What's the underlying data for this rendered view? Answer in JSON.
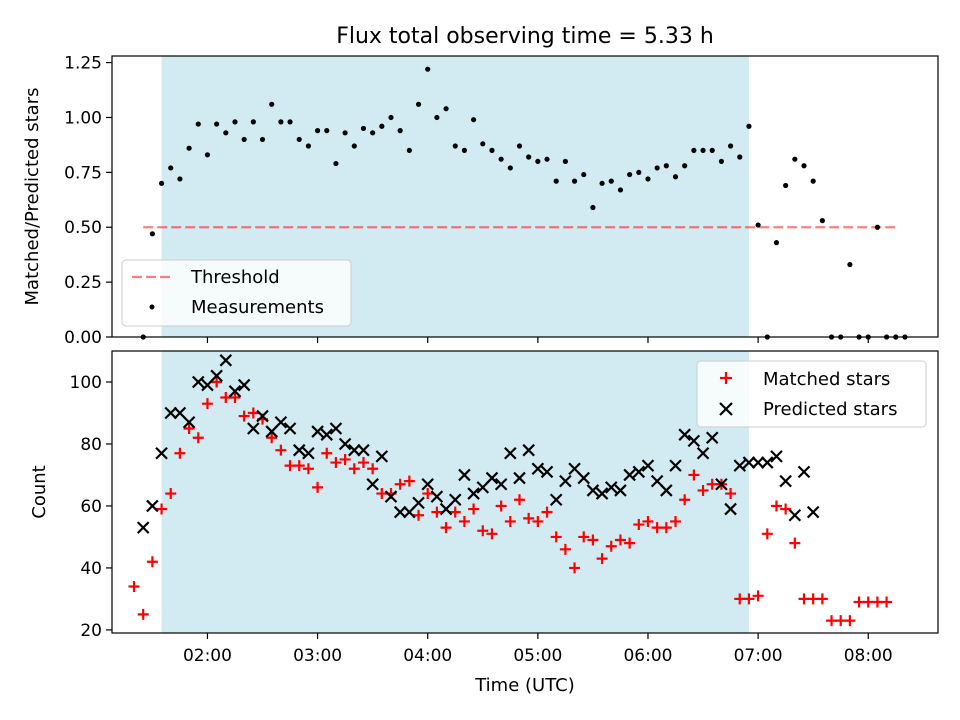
{
  "title": "Flux total observing time = 5.33 h",
  "colors": {
    "observing_window": "#add8e6",
    "threshold": "#ff0000",
    "measurements": "#000000",
    "matched": "#ff0000",
    "predicted": "#000000"
  },
  "chart_data": [
    {
      "type": "scatter",
      "title": "Flux total observing time = 5.33 h",
      "ylabel": "Matched/Predicted stars",
      "xlabel": "",
      "xlim": [
        "01:08",
        "08:38"
      ],
      "ylim": [
        0,
        1.28
      ],
      "yticks": [
        "0.00",
        "0.25",
        "0.50",
        "0.75",
        "1.00",
        "1.25"
      ],
      "observing_window": [
        "01:35",
        "06:55"
      ],
      "legend": {
        "position": "lower-left",
        "entries": [
          "Threshold",
          "Measurements"
        ]
      },
      "threshold": {
        "name": "Threshold",
        "value": 0.5,
        "x_range": [
          "01:25",
          "08:15"
        ]
      },
      "series": [
        {
          "name": "Measurements",
          "marker": "dot",
          "points": [
            [
              "01:25",
              0.0
            ],
            [
              "01:30",
              0.47
            ],
            [
              "01:35",
              0.7
            ],
            [
              "01:40",
              0.77
            ],
            [
              "01:45",
              0.72
            ],
            [
              "01:50",
              0.86
            ],
            [
              "01:55",
              0.97
            ],
            [
              "02:00",
              0.83
            ],
            [
              "02:05",
              0.97
            ],
            [
              "02:10",
              0.93
            ],
            [
              "02:15",
              0.98
            ],
            [
              "02:20",
              0.9
            ],
            [
              "02:25",
              0.98
            ],
            [
              "02:30",
              0.9
            ],
            [
              "02:35",
              1.06
            ],
            [
              "02:40",
              0.98
            ],
            [
              "02:45",
              0.98
            ],
            [
              "02:50",
              0.9
            ],
            [
              "02:55",
              0.87
            ],
            [
              "03:00",
              0.94
            ],
            [
              "03:05",
              0.94
            ],
            [
              "03:10",
              0.79
            ],
            [
              "03:15",
              0.93
            ],
            [
              "03:20",
              0.87
            ],
            [
              "03:25",
              0.95
            ],
            [
              "03:30",
              0.93
            ],
            [
              "03:35",
              0.96
            ],
            [
              "03:40",
              1.0
            ],
            [
              "03:45",
              0.94
            ],
            [
              "03:50",
              0.85
            ],
            [
              "03:55",
              1.06
            ],
            [
              "04:00",
              1.22
            ],
            [
              "04:05",
              1.0
            ],
            [
              "04:10",
              1.04
            ],
            [
              "04:15",
              0.87
            ],
            [
              "04:20",
              0.85
            ],
            [
              "04:25",
              0.99
            ],
            [
              "04:30",
              0.88
            ],
            [
              "04:35",
              0.85
            ],
            [
              "04:40",
              0.81
            ],
            [
              "04:45",
              0.77
            ],
            [
              "04:50",
              0.87
            ],
            [
              "04:55",
              0.82
            ],
            [
              "05:00",
              0.8
            ],
            [
              "05:05",
              0.81
            ],
            [
              "05:10",
              0.71
            ],
            [
              "05:15",
              0.8
            ],
            [
              "05:20",
              0.71
            ],
            [
              "05:25",
              0.74
            ],
            [
              "05:30",
              0.59
            ],
            [
              "05:35",
              0.7
            ],
            [
              "05:40",
              0.71
            ],
            [
              "05:45",
              0.67
            ],
            [
              "05:50",
              0.74
            ],
            [
              "05:55",
              0.75
            ],
            [
              "06:00",
              0.72
            ],
            [
              "06:05",
              0.77
            ],
            [
              "06:10",
              0.78
            ],
            [
              "06:15",
              0.73
            ],
            [
              "06:20",
              0.78
            ],
            [
              "06:25",
              0.85
            ],
            [
              "06:30",
              0.85
            ],
            [
              "06:35",
              0.85
            ],
            [
              "06:40",
              0.8
            ],
            [
              "06:45",
              0.87
            ],
            [
              "06:50",
              0.82
            ],
            [
              "06:55",
              0.96
            ],
            [
              "07:00",
              0.51
            ],
            [
              "07:05",
              0.0
            ],
            [
              "07:10",
              0.43
            ],
            [
              "07:15",
              0.69
            ],
            [
              "07:20",
              0.81
            ],
            [
              "07:25",
              0.78
            ],
            [
              "07:30",
              0.71
            ],
            [
              "07:35",
              0.53
            ],
            [
              "07:40",
              0.0
            ],
            [
              "07:45",
              0.0
            ],
            [
              "07:50",
              0.33
            ],
            [
              "07:55",
              0.0
            ],
            [
              "08:00",
              0.0
            ],
            [
              "08:05",
              0.5
            ],
            [
              "08:10",
              0.0
            ],
            [
              "08:15",
              0.0
            ],
            [
              "08:20",
              0.0
            ]
          ]
        }
      ]
    },
    {
      "type": "scatter",
      "title": "",
      "ylabel": "Count",
      "xlabel": "Time (UTC)",
      "xlim": [
        "01:08",
        "08:38"
      ],
      "ylim": [
        19,
        110
      ],
      "yticks": [
        "20",
        "40",
        "60",
        "80",
        "100"
      ],
      "xticks": [
        "02:00",
        "03:00",
        "04:00",
        "05:00",
        "06:00",
        "07:00",
        "08:00"
      ],
      "observing_window": [
        "01:35",
        "06:55"
      ],
      "legend": {
        "position": "top-right",
        "entries": [
          "Matched stars",
          "Predicted stars"
        ]
      },
      "series": [
        {
          "name": "Matched stars",
          "marker": "plus",
          "points": [
            [
              "01:20",
              34
            ],
            [
              "01:25",
              25
            ],
            [
              "01:30",
              42
            ],
            [
              "01:35",
              59
            ],
            [
              "01:40",
              64
            ],
            [
              "01:45",
              77
            ],
            [
              "01:50",
              85
            ],
            [
              "01:55",
              82
            ],
            [
              "02:00",
              93
            ],
            [
              "02:05",
              100
            ],
            [
              "02:10",
              95
            ],
            [
              "02:15",
              95
            ],
            [
              "02:20",
              89
            ],
            [
              "02:25",
              90
            ],
            [
              "02:30",
              88
            ],
            [
              "02:35",
              82
            ],
            [
              "02:40",
              78
            ],
            [
              "02:45",
              73
            ],
            [
              "02:50",
              73
            ],
            [
              "02:55",
              72
            ],
            [
              "03:00",
              66
            ],
            [
              "03:05",
              77
            ],
            [
              "03:10",
              74
            ],
            [
              "03:15",
              75
            ],
            [
              "03:20",
              72
            ],
            [
              "03:25",
              74
            ],
            [
              "03:30",
              72
            ],
            [
              "03:35",
              64
            ],
            [
              "03:40",
              64
            ],
            [
              "03:45",
              67
            ],
            [
              "03:50",
              68
            ],
            [
              "03:55",
              57
            ],
            [
              "04:00",
              64
            ],
            [
              "04:05",
              58
            ],
            [
              "04:10",
              53
            ],
            [
              "04:15",
              58
            ],
            [
              "04:20",
              55
            ],
            [
              "04:25",
              59
            ],
            [
              "04:30",
              52
            ],
            [
              "04:35",
              51
            ],
            [
              "04:40",
              60
            ],
            [
              "04:45",
              55
            ],
            [
              "04:50",
              62
            ],
            [
              "04:55",
              56
            ],
            [
              "05:00",
              55
            ],
            [
              "05:05",
              58
            ],
            [
              "05:10",
              50
            ],
            [
              "05:15",
              46
            ],
            [
              "05:20",
              40
            ],
            [
              "05:25",
              50
            ],
            [
              "05:30",
              49
            ],
            [
              "05:35",
              43
            ],
            [
              "05:40",
              47
            ],
            [
              "05:45",
              49
            ],
            [
              "05:50",
              48
            ],
            [
              "05:55",
              54
            ],
            [
              "06:00",
              55
            ],
            [
              "06:05",
              53
            ],
            [
              "06:10",
              53
            ],
            [
              "06:15",
              55
            ],
            [
              "06:20",
              62
            ],
            [
              "06:25",
              70
            ],
            [
              "06:30",
              65
            ],
            [
              "06:35",
              67
            ],
            [
              "06:40",
              67
            ],
            [
              "06:45",
              64
            ],
            [
              "06:50",
              30
            ],
            [
              "06:55",
              30
            ],
            [
              "07:00",
              31
            ],
            [
              "07:05",
              51
            ],
            [
              "07:10",
              60
            ],
            [
              "07:15",
              59
            ],
            [
              "07:20",
              48
            ],
            [
              "07:25",
              30
            ],
            [
              "07:30",
              30
            ],
            [
              "07:35",
              30
            ],
            [
              "07:40",
              23
            ],
            [
              "07:45",
              23
            ],
            [
              "07:50",
              23
            ],
            [
              "07:55",
              29
            ],
            [
              "08:00",
              29
            ],
            [
              "08:05",
              29
            ],
            [
              "08:10",
              29
            ]
          ]
        },
        {
          "name": "Predicted stars",
          "marker": "x",
          "points": [
            [
              "01:25",
              53
            ],
            [
              "01:30",
              60
            ],
            [
              "01:35",
              77
            ],
            [
              "01:40",
              90
            ],
            [
              "01:45",
              90
            ],
            [
              "01:50",
              87
            ],
            [
              "01:55",
              100
            ],
            [
              "02:00",
              99
            ],
            [
              "02:05",
              102
            ],
            [
              "02:10",
              107
            ],
            [
              "02:15",
              97
            ],
            [
              "02:20",
              99
            ],
            [
              "02:25",
              85
            ],
            [
              "02:30",
              89
            ],
            [
              "02:35",
              84
            ],
            [
              "02:40",
              87
            ],
            [
              "02:45",
              85
            ],
            [
              "02:50",
              78
            ],
            [
              "02:55",
              77
            ],
            [
              "03:00",
              84
            ],
            [
              "03:05",
              83
            ],
            [
              "03:10",
              85
            ],
            [
              "03:15",
              80
            ],
            [
              "03:20",
              78
            ],
            [
              "03:25",
              78
            ],
            [
              "03:30",
              67
            ],
            [
              "03:35",
              76
            ],
            [
              "03:40",
              63
            ],
            [
              "03:45",
              58
            ],
            [
              "03:50",
              58
            ],
            [
              "03:55",
              61
            ],
            [
              "04:00",
              67
            ],
            [
              "04:05",
              63
            ],
            [
              "04:10",
              59
            ],
            [
              "04:15",
              62
            ],
            [
              "04:20",
              70
            ],
            [
              "04:25",
              64
            ],
            [
              "04:30",
              66
            ],
            [
              "04:35",
              69
            ],
            [
              "04:40",
              67
            ],
            [
              "04:45",
              77
            ],
            [
              "04:50",
              69
            ],
            [
              "04:55",
              78
            ],
            [
              "05:00",
              72
            ],
            [
              "05:05",
              71
            ],
            [
              "05:10",
              62
            ],
            [
              "05:15",
              68
            ],
            [
              "05:20",
              72
            ],
            [
              "05:25",
              69
            ],
            [
              "05:30",
              65
            ],
            [
              "05:35",
              64
            ],
            [
              "05:40",
              66
            ],
            [
              "05:45",
              65
            ],
            [
              "05:50",
              70
            ],
            [
              "05:55",
              71
            ],
            [
              "06:00",
              73
            ],
            [
              "06:05",
              68
            ],
            [
              "06:10",
              65
            ],
            [
              "06:15",
              73
            ],
            [
              "06:20",
              83
            ],
            [
              "06:25",
              81
            ],
            [
              "06:30",
              77
            ],
            [
              "06:35",
              82
            ],
            [
              "06:40",
              67
            ],
            [
              "06:45",
              59
            ],
            [
              "06:50",
              73
            ],
            [
              "06:55",
              74
            ],
            [
              "07:00",
              74
            ],
            [
              "07:05",
              74
            ],
            [
              "07:10",
              76
            ],
            [
              "07:15",
              68
            ],
            [
              "07:20",
              57
            ],
            [
              "07:25",
              71
            ],
            [
              "07:30",
              58
            ]
          ]
        }
      ]
    }
  ]
}
